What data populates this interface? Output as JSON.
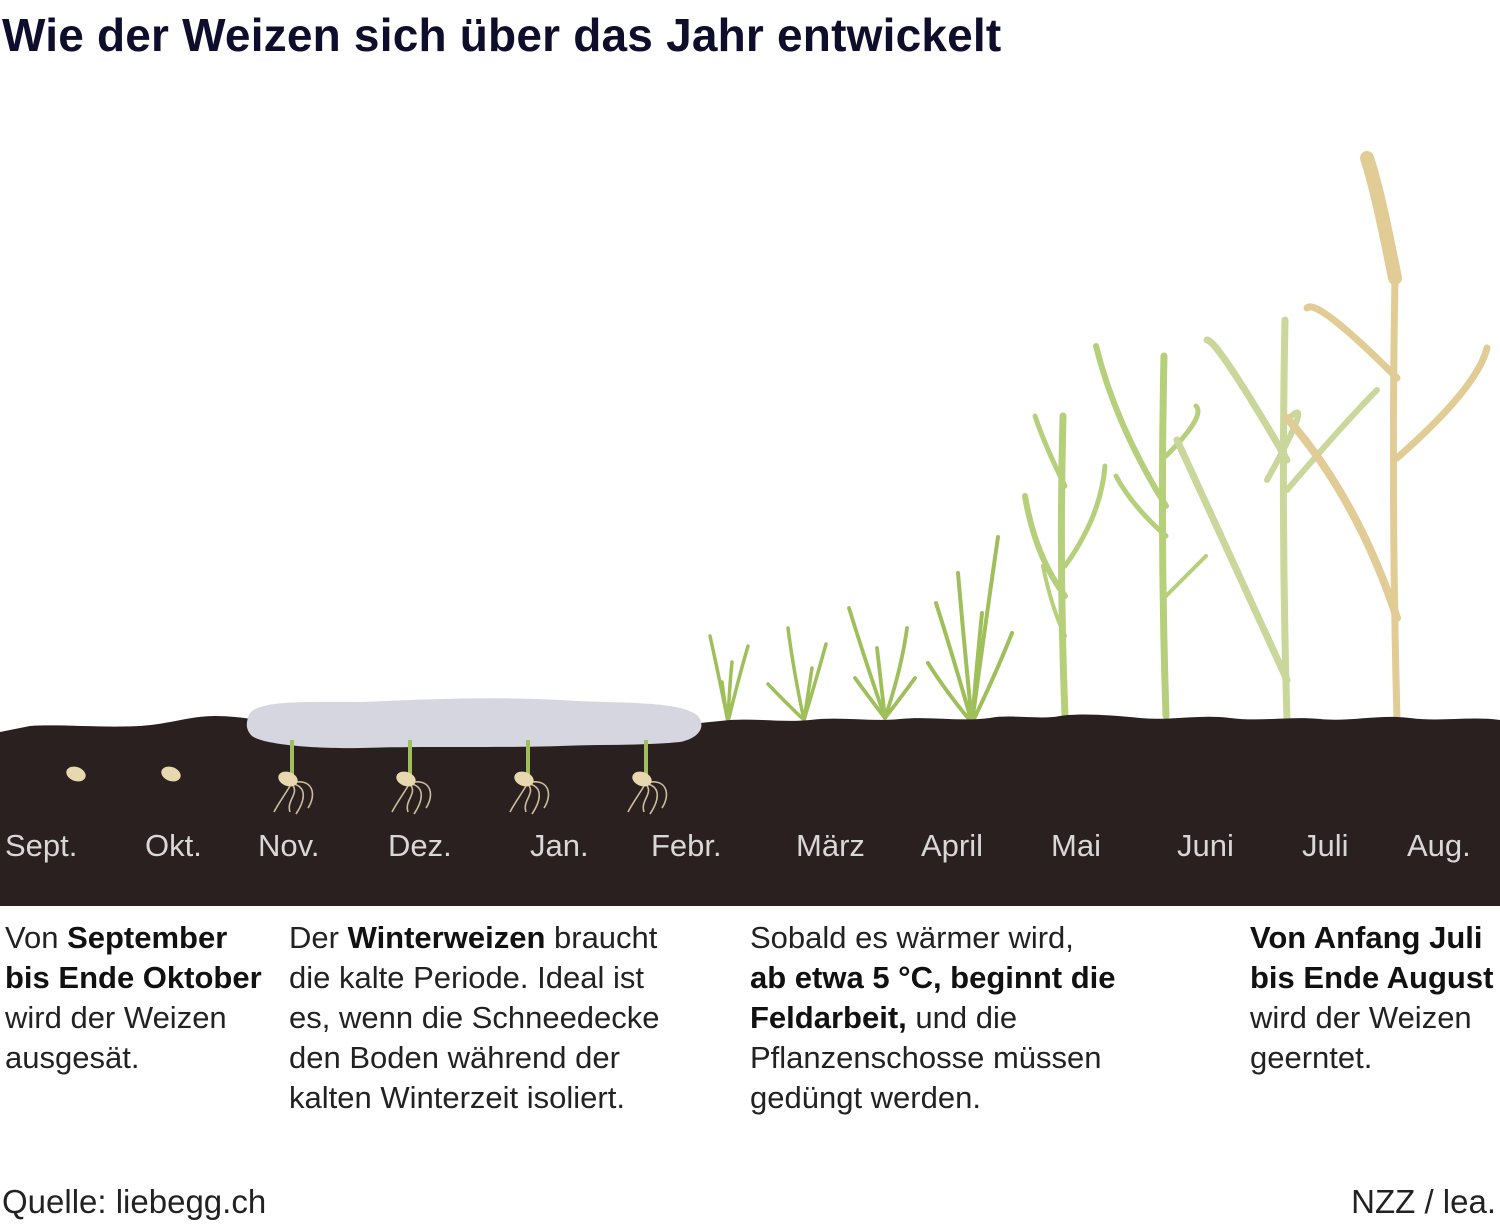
{
  "title": "Wie der Weizen sich über das Jahr entwickelt",
  "months": [
    "Sept.",
    "Okt.",
    "Nov.",
    "Dez.",
    "Jan.",
    "Febr.",
    "März",
    "April",
    "Mai",
    "Juni",
    "Juli",
    "Aug."
  ],
  "descriptions": [
    {
      "lines": [
        [
          {
            "t": "Von ",
            "b": false
          },
          {
            "t": "September",
            "b": true
          }
        ],
        [
          {
            "t": "bis Ende Oktober",
            "b": true
          }
        ],
        [
          {
            "t": "wird der Weizen",
            "b": false
          }
        ],
        [
          {
            "t": "ausgesät.",
            "b": false
          }
        ]
      ]
    },
    {
      "lines": [
        [
          {
            "t": "Der ",
            "b": false
          },
          {
            "t": "Winterweizen",
            "b": true
          },
          {
            "t": " braucht",
            "b": false
          }
        ],
        [
          {
            "t": "die kalte Periode. Ideal ist",
            "b": false
          }
        ],
        [
          {
            "t": "es, wenn die Schneedecke",
            "b": false
          }
        ],
        [
          {
            "t": "den Boden während der",
            "b": false
          }
        ],
        [
          {
            "t": "kalten Winterzeit isoliert.",
            "b": false
          }
        ]
      ]
    },
    {
      "lines": [
        [
          {
            "t": "Sobald es wärmer wird,",
            "b": false
          }
        ],
        [
          {
            "t": "ab etwa 5 °C, beginnt die",
            "b": true
          }
        ],
        [
          {
            "t": "Feldarbeit,",
            "b": true
          },
          {
            "t": " und die",
            "b": false
          }
        ],
        [
          {
            "t": "Pflanzenschosse müssen",
            "b": false
          }
        ],
        [
          {
            "t": "gedüngt werden.",
            "b": false
          }
        ]
      ]
    },
    {
      "lines": [
        [
          {
            "t": "Von Anfang Juli",
            "b": true
          }
        ],
        [
          {
            "t": "bis Ende August",
            "b": true
          }
        ],
        [
          {
            "t": "wird der Weizen",
            "b": false
          }
        ],
        [
          {
            "t": "geerntet.",
            "b": false
          }
        ]
      ]
    }
  ],
  "source": "Quelle: liebegg.ch",
  "credit": "NZZ / lea.",
  "colors": {
    "soil": "#2b2020",
    "snow": "#d6d6e0",
    "seed": "#e8d8b0",
    "sprout": "#9fbf5a",
    "young_plant": "#b6cf7a",
    "grown_plant": "#c9d79a",
    "ripe_plant": "#e2cc96",
    "month_label": "#d8d8d8"
  },
  "icons": [
    "seed-icon",
    "snow-cover-icon",
    "sprout-icon",
    "wheat-plant-icon",
    "wheat-ear-icon"
  ]
}
